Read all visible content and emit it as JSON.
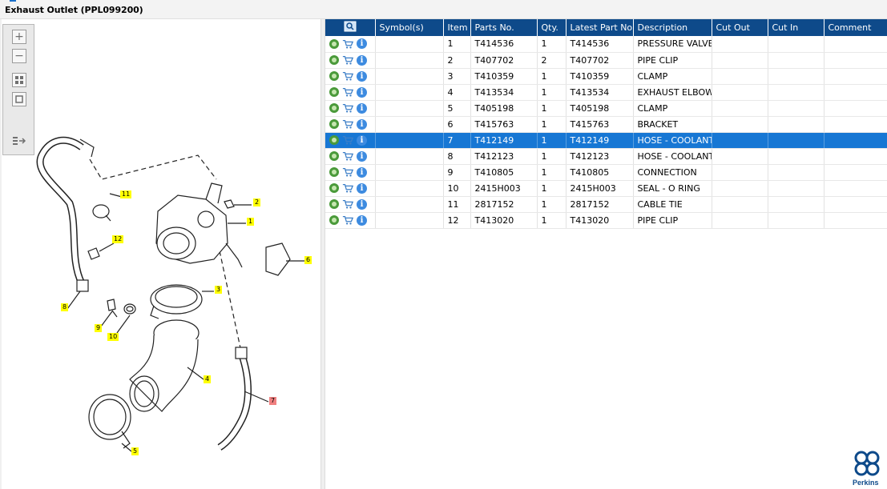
{
  "window": {
    "title": "Exhaust Outlet (PPL099200)"
  },
  "toolbar": {
    "zoom_in_icon": "plus-icon",
    "zoom_out_icon": "minus-icon",
    "fit_icon": "fit-all-icon",
    "actual_size_icon": "actual-size-icon",
    "export_icon": "export-icon"
  },
  "callouts": {
    "c1": "1",
    "c2": "2",
    "c3": "3",
    "c4": "4",
    "c5": "5",
    "c6": "6",
    "c7": "7",
    "c8": "8",
    "c9": "9",
    "c10": "10",
    "c11": "11",
    "c12": "12"
  },
  "colors": {
    "header": "#0e4a8a",
    "selected": "#1777d4",
    "callout": "#ffff00",
    "callout_selected": "#f08080"
  },
  "table": {
    "columns": {
      "icons": "",
      "symbols": "Symbol(s)",
      "item": "Item",
      "parts_no": "Parts No.",
      "qty": "Qty.",
      "latest": "Latest Part No.",
      "description": "Description",
      "cut_out": "Cut Out",
      "cut_in": "Cut In",
      "comment": "Comment"
    },
    "rows": [
      {
        "item": "1",
        "parts_no": "T414536",
        "qty": "1",
        "latest": "T414536",
        "description": "PRESSURE VALVE"
      },
      {
        "item": "2",
        "parts_no": "T407702",
        "qty": "2",
        "latest": "T407702",
        "description": "PIPE CLIP"
      },
      {
        "item": "3",
        "parts_no": "T410359",
        "qty": "1",
        "latest": "T410359",
        "description": "CLAMP"
      },
      {
        "item": "4",
        "parts_no": "T413534",
        "qty": "1",
        "latest": "T413534",
        "description": "EXHAUST ELBOW"
      },
      {
        "item": "5",
        "parts_no": "T405198",
        "qty": "1",
        "latest": "T405198",
        "description": "CLAMP"
      },
      {
        "item": "6",
        "parts_no": "T415763",
        "qty": "1",
        "latest": "T415763",
        "description": "BRACKET"
      },
      {
        "item": "7",
        "parts_no": "T412149",
        "qty": "1",
        "latest": "T412149",
        "description": "HOSE - COOLANT"
      },
      {
        "item": "8",
        "parts_no": "T412123",
        "qty": "1",
        "latest": "T412123",
        "description": "HOSE - COOLANT"
      },
      {
        "item": "9",
        "parts_no": "T410805",
        "qty": "1",
        "latest": "T410805",
        "description": "CONNECTION"
      },
      {
        "item": "10",
        "parts_no": "2415H003",
        "qty": "1",
        "latest": "2415H003",
        "description": "SEAL - O RING"
      },
      {
        "item": "11",
        "parts_no": "2817152",
        "qty": "1",
        "latest": "2817152",
        "description": "CABLE TIE"
      },
      {
        "item": "12",
        "parts_no": "T413020",
        "qty": "1",
        "latest": "T413020",
        "description": "PIPE CLIP"
      }
    ],
    "selected_item": "7"
  },
  "brand": {
    "name": "Perkins"
  }
}
